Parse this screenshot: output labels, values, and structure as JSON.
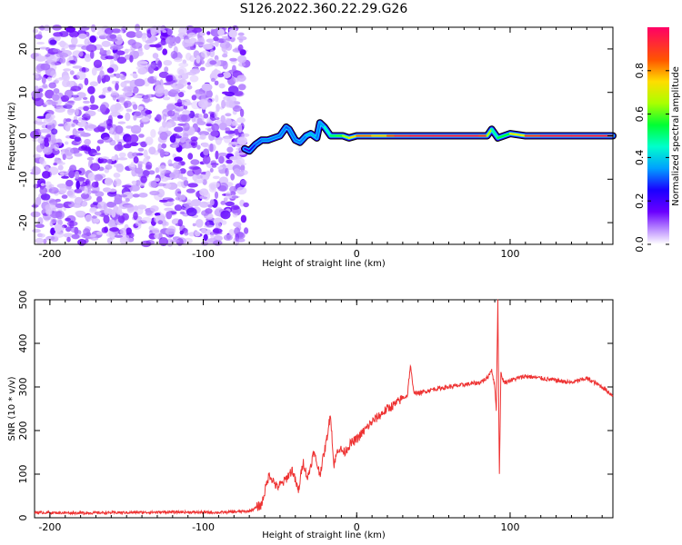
{
  "page": {
    "title": "S126.2022.360.22.29.G26"
  },
  "chart_data": [
    {
      "type": "heatmap",
      "xlabel": "Height of straight line (km)",
      "ylabel": "Frequency (Hz)",
      "xlim": [
        -210,
        167
      ],
      "ylim": [
        -25,
        25
      ],
      "x_ticks": [
        -200,
        -100,
        0,
        100
      ],
      "y_ticks": [
        -20,
        -10,
        0,
        10,
        20
      ],
      "colorbar": {
        "label": "Normalized spectral amplitude",
        "range": [
          0,
          1
        ],
        "ticks": [
          0.0,
          0.2,
          0.4,
          0.6,
          0.8
        ],
        "tick_labels": [
          "0.0",
          "0.2",
          "0.4",
          "0.6",
          "0.8"
        ]
      },
      "noise_region_x": [
        -210,
        -72
      ],
      "signal_line": {
        "x": [
          -73,
          -70,
          -66,
          -62,
          -58,
          -54,
          -50,
          -46,
          -44,
          -40,
          -37,
          -33,
          -30,
          -26,
          -24,
          -21,
          -17,
          -13,
          -9,
          -5,
          0,
          5,
          10,
          15,
          20,
          25,
          35,
          50,
          80,
          85,
          88,
          92,
          100,
          110,
          120,
          140,
          167
        ],
        "y": [
          -3,
          -3.5,
          -2,
          -1,
          -1,
          -0.5,
          0,
          2,
          1.5,
          -1,
          -1.5,
          0,
          0.5,
          -0.5,
          3,
          2,
          0,
          0,
          0,
          -0.5,
          0,
          0,
          0,
          0,
          0,
          0,
          0,
          0,
          0,
          0,
          1.5,
          -0.5,
          0.5,
          0,
          0,
          0,
          0
        ],
        "amplitude": [
          0.2,
          0.2,
          0.3,
          0.3,
          0.35,
          0.3,
          0.35,
          0.3,
          0.3,
          0.35,
          0.3,
          0.35,
          0.4,
          0.35,
          0.3,
          0.4,
          0.5,
          0.55,
          0.6,
          0.7,
          0.8,
          0.85,
          0.8,
          0.75,
          0.8,
          0.9,
          0.95,
          0.95,
          0.95,
          0.85,
          0.45,
          0.5,
          0.6,
          0.85,
          0.95,
          0.95,
          0.95
        ]
      }
    },
    {
      "type": "line",
      "xlabel": "Height of straight line (km)",
      "ylabel": "SNR (10 * v/v)",
      "xlim": [
        -210,
        167
      ],
      "ylim": [
        0,
        500
      ],
      "x_ticks": [
        -200,
        -100,
        0,
        100
      ],
      "y_ticks": [
        0,
        100,
        200,
        300,
        400,
        500
      ],
      "color": "#ee3333",
      "series": [
        {
          "x": [
            -210,
            -180,
            -150,
            -120,
            -90,
            -70,
            -62,
            -60,
            -57,
            -52,
            -48,
            -42,
            -38,
            -35,
            -32,
            -28,
            -24,
            -20,
            -17,
            -15,
            -12,
            -8,
            -4,
            0,
            5,
            10,
            15,
            20,
            25,
            30,
            33,
            35,
            37,
            40,
            45,
            50,
            60,
            70,
            80,
            85,
            88,
            90,
            91,
            92,
            93,
            94,
            96,
            100,
            110,
            120,
            130,
            140,
            150,
            160,
            167
          ],
          "y": [
            12,
            11,
            12,
            13,
            12,
            15,
            30,
            60,
            100,
            70,
            80,
            110,
            60,
            130,
            90,
            150,
            100,
            170,
            240,
            120,
            160,
            150,
            170,
            180,
            200,
            220,
            235,
            250,
            260,
            275,
            280,
            350,
            290,
            285,
            290,
            295,
            300,
            305,
            310,
            320,
            340,
            300,
            250,
            500,
            100,
            330,
            310,
            315,
            325,
            320,
            315,
            310,
            320,
            300,
            280
          ]
        }
      ]
    }
  ]
}
